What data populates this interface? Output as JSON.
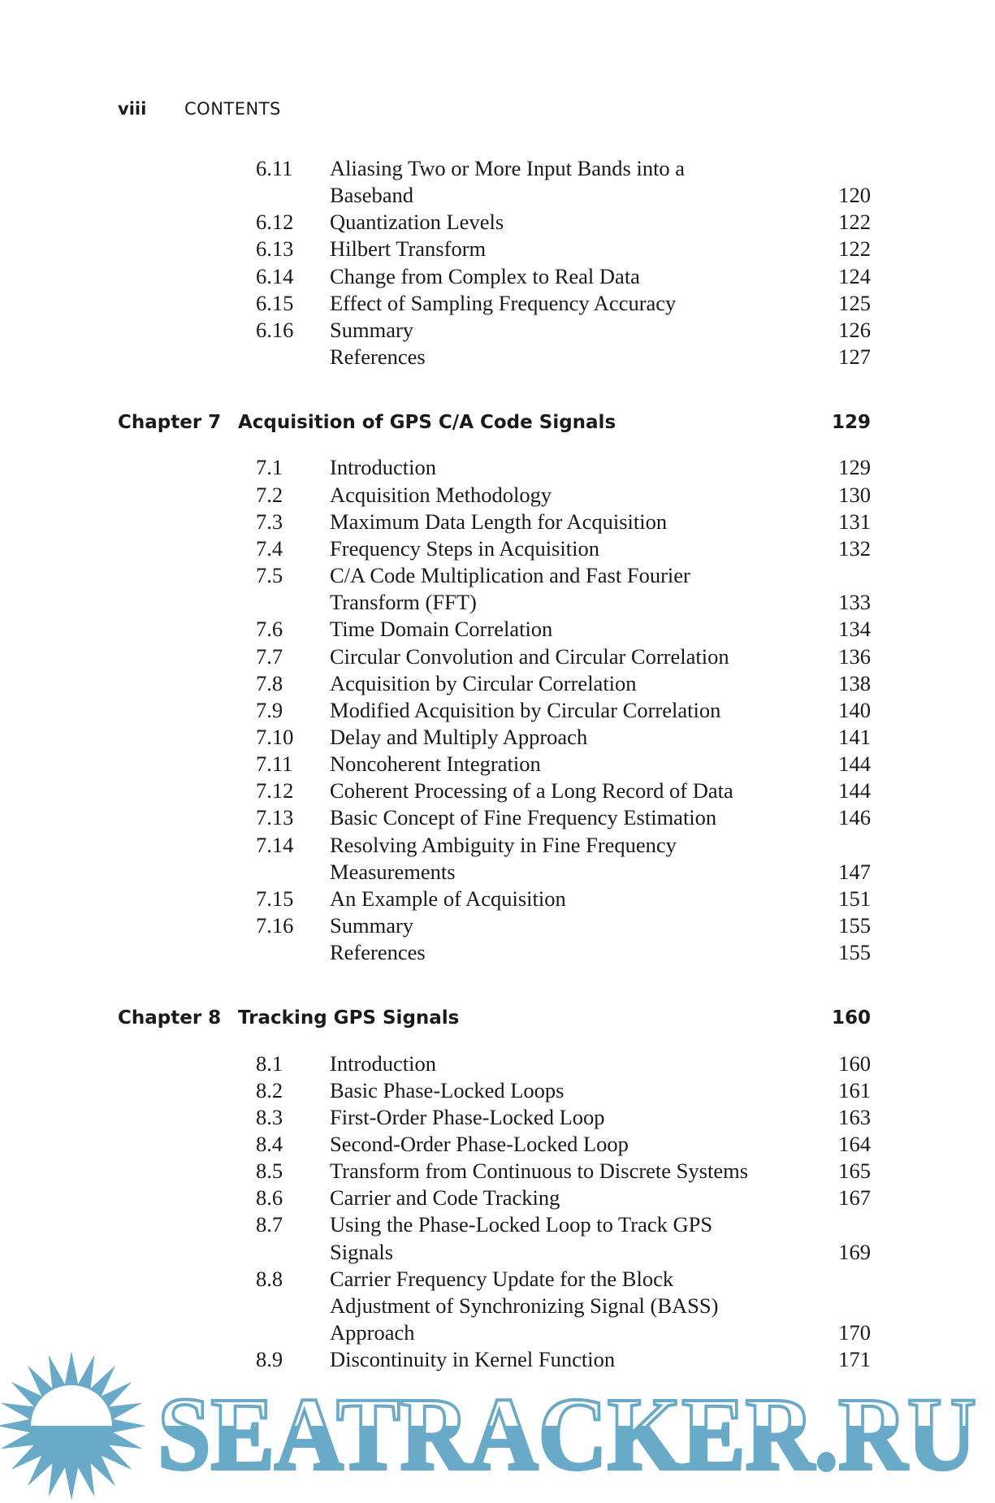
{
  "header": {
    "folio": "viii",
    "running_head": "CONTENTS"
  },
  "watermark": {
    "text": "SEATRACKER.RU",
    "color": "#6aaac9",
    "icon": "sun-icon"
  },
  "sections": [
    {
      "entries": [
        {
          "num": "6.11",
          "title": [
            "Aliasing Two or More Input Bands into a",
            "Baseband"
          ],
          "page": "120"
        },
        {
          "num": "6.12",
          "title": [
            "Quantization Levels"
          ],
          "page": "122"
        },
        {
          "num": "6.13",
          "title": [
            "Hilbert Transform"
          ],
          "page": "122"
        },
        {
          "num": "6.14",
          "title": [
            "Change from Complex to Real Data"
          ],
          "page": "124"
        },
        {
          "num": "6.15",
          "title": [
            "Effect of Sampling Frequency Accuracy"
          ],
          "page": "125"
        },
        {
          "num": "6.16",
          "title": [
            "Summary"
          ],
          "page": "126"
        },
        {
          "num": "",
          "title": [
            "References"
          ],
          "page": "127"
        }
      ]
    },
    {
      "chapter": {
        "label": "Chapter 7",
        "title": "Acquisition of GPS C/A Code Signals",
        "page": "129"
      },
      "entries": [
        {
          "num": "7.1",
          "title": [
            "Introduction"
          ],
          "page": "129"
        },
        {
          "num": "7.2",
          "title": [
            "Acquisition Methodology"
          ],
          "page": "130"
        },
        {
          "num": "7.3",
          "title": [
            "Maximum Data Length for Acquisition"
          ],
          "page": "131"
        },
        {
          "num": "7.4",
          "title": [
            "Frequency Steps in Acquisition"
          ],
          "page": "132"
        },
        {
          "num": "7.5",
          "title": [
            "C/A Code Multiplication and Fast Fourier",
            "Transform (FFT)"
          ],
          "page": "133"
        },
        {
          "num": "7.6",
          "title": [
            "Time Domain Correlation"
          ],
          "page": "134"
        },
        {
          "num": "7.7",
          "title": [
            "Circular Convolution and Circular Correlation"
          ],
          "page": "136"
        },
        {
          "num": "7.8",
          "title": [
            "Acquisition by Circular Correlation"
          ],
          "page": "138"
        },
        {
          "num": "7.9",
          "title": [
            "Modified Acquisition by Circular Correlation"
          ],
          "page": "140"
        },
        {
          "num": "7.10",
          "title": [
            "Delay and Multiply Approach"
          ],
          "page": "141"
        },
        {
          "num": "7.11",
          "title": [
            "Noncoherent Integration"
          ],
          "page": "144"
        },
        {
          "num": "7.12",
          "title": [
            "Coherent Processing of a Long Record of Data"
          ],
          "page": "144"
        },
        {
          "num": "7.13",
          "title": [
            "Basic Concept of Fine Frequency Estimation"
          ],
          "page": "146"
        },
        {
          "num": "7.14",
          "title": [
            "Resolving Ambiguity in Fine Frequency",
            "Measurements"
          ],
          "page": "147"
        },
        {
          "num": "7.15",
          "title": [
            "An Example of Acquisition"
          ],
          "page": "151"
        },
        {
          "num": "7.16",
          "title": [
            "Summary"
          ],
          "page": "155"
        },
        {
          "num": "",
          "title": [
            "References"
          ],
          "page": "155"
        }
      ]
    },
    {
      "chapter": {
        "label": "Chapter 8",
        "title": "Tracking GPS Signals",
        "page": "160"
      },
      "entries": [
        {
          "num": "8.1",
          "title": [
            "Introduction"
          ],
          "page": "160"
        },
        {
          "num": "8.2",
          "title": [
            "Basic Phase-Locked Loops"
          ],
          "page": "161"
        },
        {
          "num": "8.3",
          "title": [
            "First-Order Phase-Locked Loop"
          ],
          "page": "163"
        },
        {
          "num": "8.4",
          "title": [
            "Second-Order Phase-Locked Loop"
          ],
          "page": "164"
        },
        {
          "num": "8.5",
          "title": [
            "Transform from Continuous to Discrete Systems"
          ],
          "page": "165"
        },
        {
          "num": "8.6",
          "title": [
            "Carrier and Code Tracking"
          ],
          "page": "167"
        },
        {
          "num": "8.7",
          "title": [
            "Using the Phase-Locked Loop to Track GPS",
            "Signals"
          ],
          "page": "169"
        },
        {
          "num": "8.8",
          "title": [
            "Carrier Frequency Update for the Block",
            "Adjustment of Synchronizing Signal (BASS)",
            "Approach"
          ],
          "page": "170"
        },
        {
          "num": "8.9",
          "title": [
            "Discontinuity in Kernel Function"
          ],
          "page": "171"
        }
      ]
    }
  ]
}
